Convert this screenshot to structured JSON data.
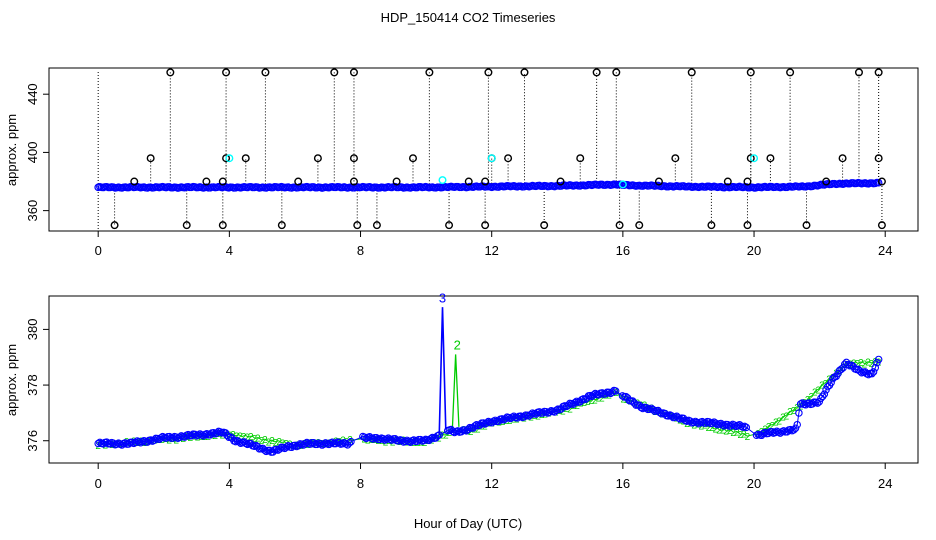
{
  "title": "HDP_150414  CO2 Timeseries",
  "xlabel": "Hour of Day (UTC)",
  "colors": {
    "blue": "#0000ff",
    "green": "#00cc00",
    "cyan": "#00ffff",
    "black": "#000000"
  },
  "chart_data": [
    {
      "type": "scatter",
      "name": "top-panel",
      "ylabel": "approx. ppm",
      "xlim": [
        -1.5,
        25
      ],
      "xticks": [
        0,
        4,
        8,
        12,
        16,
        20,
        24
      ],
      "xtick_labels": [
        "0",
        "4",
        "8",
        "12",
        "16",
        "20",
        "24"
      ],
      "yticks": [
        360,
        400,
        440
      ],
      "ytick_labels": [
        "360",
        "400",
        "440"
      ],
      "ylim": [
        346,
        458
      ],
      "baseline_series": {
        "name": "CO2 (blue)",
        "x": [
          0,
          2,
          4,
          6,
          8,
          10,
          12,
          14,
          15.8,
          16,
          18,
          20,
          21.5,
          22.5,
          23.8
        ],
        "y": [
          376,
          376,
          376,
          376,
          376,
          376,
          376.5,
          377,
          378,
          377.5,
          376.5,
          376,
          376.5,
          378.5,
          379
        ]
      },
      "flag_high_x": [
        2.2,
        3.9,
        5.1,
        7.2,
        7.8,
        10.1,
        11.9,
        13.0,
        15.2,
        15.8,
        18.1,
        19.9,
        21.1,
        23.2,
        23.8
      ],
      "flag_high_y": 455,
      "flag_low_x": [
        0.5,
        2.7,
        3.8,
        5.6,
        7.9,
        8.5,
        10.7,
        11.8,
        13.6,
        15.9,
        16.5,
        18.7,
        19.8,
        21.6,
        23.9
      ],
      "flag_low_y": 350,
      "flag_mid_x": [
        1.6,
        3.9,
        4.5,
        6.7,
        7.8,
        9.6,
        12.0,
        12.5,
        14.7,
        17.6,
        19.9,
        20.5,
        22.7,
        23.8
      ],
      "flag_mid_y": 396,
      "flag_small_x": [
        1.1,
        3.3,
        3.8,
        6.1,
        7.8,
        9.1,
        11.3,
        11.8,
        14.1,
        17.1,
        19.2,
        19.8,
        22.2,
        23.9
      ],
      "flag_small_y": 380,
      "cyan_points": [
        [
          4.0,
          396
        ],
        [
          10.5,
          381
        ],
        [
          12.0,
          396
        ],
        [
          16.0,
          378
        ],
        [
          20.0,
          396
        ]
      ]
    },
    {
      "type": "line",
      "name": "bottom-panel",
      "ylabel": "approx. ppm",
      "xlim": [
        -1.5,
        25
      ],
      "xticks": [
        0,
        4,
        8,
        12,
        16,
        20,
        24
      ],
      "xtick_labels": [
        "0",
        "4",
        "8",
        "12",
        "16",
        "20",
        "24"
      ],
      "yticks": [
        376,
        378,
        380
      ],
      "ytick_labels": [
        "376",
        "378",
        "380"
      ],
      "ylim": [
        375.2,
        381.2
      ],
      "series": [
        {
          "name": "CO2 blue",
          "color": "#0000ff",
          "x": [
            0,
            1,
            2,
            3,
            3.8,
            4.2,
            4.8,
            5.3,
            5.8,
            6.5,
            7.2,
            7.6,
            8.0,
            8.5,
            9.2,
            10.0,
            10.4,
            10.5,
            10.6,
            10.9,
            11.2,
            12.0,
            13.0,
            14.0,
            15.0,
            15.8,
            16.0,
            16.6,
            17.2,
            18.0,
            19.0,
            19.7,
            20.1,
            20.6,
            21.3,
            21.4,
            22.0,
            22.4,
            22.8,
            23.2,
            23.6,
            23.8
          ],
          "y": [
            375.9,
            375.9,
            376.1,
            376.2,
            376.3,
            376.0,
            375.8,
            375.6,
            375.8,
            375.9,
            375.9,
            375.9,
            376.1,
            376.1,
            376.0,
            376.0,
            376.2,
            380.8,
            376.4,
            376.3,
            376.4,
            376.7,
            376.9,
            377.1,
            377.6,
            377.8,
            377.6,
            377.2,
            377.0,
            376.7,
            376.6,
            376.5,
            376.2,
            376.3,
            376.4,
            377.3,
            377.4,
            378.2,
            378.8,
            378.5,
            378.4,
            378.9
          ]
        },
        {
          "name": "CO2 green",
          "color": "#00cc00",
          "x": [
            0,
            2,
            4,
            6,
            8,
            10,
            10.8,
            10.9,
            11.0,
            11.3,
            12,
            14,
            15.8,
            16,
            18,
            20,
            21.4,
            22.8,
            23.8
          ],
          "y": [
            375.9,
            376.1,
            376.3,
            375.9,
            376.1,
            376.0,
            376.4,
            379.1,
            376.5,
            376.4,
            376.7,
            377.1,
            377.8,
            377.6,
            376.7,
            376.2,
            377.3,
            378.8,
            378.9
          ]
        }
      ],
      "annotations": [
        {
          "text": "3",
          "x": 10.5,
          "y": 380.9,
          "color": "#0000ff"
        },
        {
          "text": "2",
          "x": 10.95,
          "y": 379.2,
          "color": "#00cc00"
        }
      ]
    }
  ]
}
